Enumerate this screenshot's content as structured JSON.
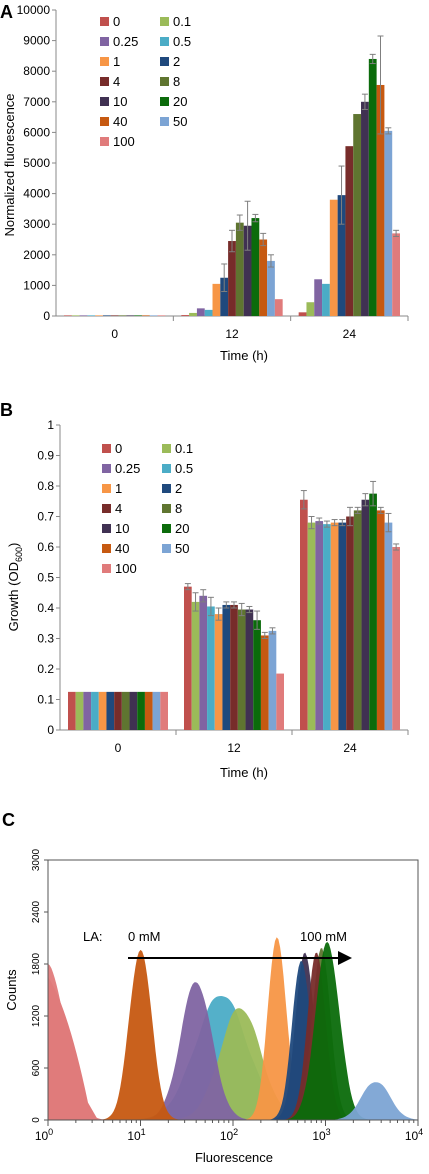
{
  "chart_data": [
    {
      "panel_label": "A",
      "type": "bar",
      "ylabel": "Normalized fluorescence",
      "xlabel": "Time (h)",
      "ylim": [
        0,
        10000
      ],
      "yticks": [
        "0",
        "1000",
        "2000",
        "3000",
        "4000",
        "5000",
        "6000",
        "7000",
        "8000",
        "9000",
        "10000"
      ],
      "categories": [
        "0",
        "12",
        "24"
      ],
      "legend_position": "top-left",
      "series": [
        {
          "name": "0",
          "color": "#c0504d",
          "values": [
            20,
            30,
            120
          ],
          "errors": [
            0,
            0,
            0
          ]
        },
        {
          "name": "0.1",
          "color": "#9bbb59",
          "values": [
            20,
            100,
            450
          ],
          "errors": [
            0,
            0,
            0
          ]
        },
        {
          "name": "0.25",
          "color": "#8064a2",
          "values": [
            20,
            250,
            1200
          ],
          "errors": [
            0,
            0,
            0
          ]
        },
        {
          "name": "0.5",
          "color": "#4bacc6",
          "values": [
            20,
            200,
            1050
          ],
          "errors": [
            0,
            0,
            0
          ]
        },
        {
          "name": "1",
          "color": "#f79646",
          "values": [
            20,
            1050,
            3800
          ],
          "errors": [
            0,
            0,
            0
          ]
        },
        {
          "name": "2",
          "color": "#1f497d",
          "values": [
            20,
            1250,
            3950
          ],
          "errors": [
            0,
            450,
            950
          ]
        },
        {
          "name": "4",
          "color": "#772c2a",
          "values": [
            20,
            2450,
            5550
          ],
          "errors": [
            0,
            350,
            0
          ]
        },
        {
          "name": "8",
          "color": "#5f7530",
          "values": [
            20,
            3050,
            6600
          ],
          "errors": [
            0,
            250,
            0
          ]
        },
        {
          "name": "10",
          "color": "#403152",
          "values": [
            20,
            2950,
            7000
          ],
          "errors": [
            0,
            800,
            250
          ]
        },
        {
          "name": "20",
          "color": "#0b6b0b",
          "values": [
            20,
            3200,
            8400
          ],
          "errors": [
            0,
            120,
            150
          ]
        },
        {
          "name": "40",
          "color": "#c65911",
          "values": [
            20,
            2500,
            7550
          ],
          "errors": [
            0,
            200,
            1600
          ]
        },
        {
          "name": "50",
          "color": "#7ca4d4",
          "values": [
            20,
            1800,
            6050
          ],
          "errors": [
            0,
            200,
            100
          ]
        },
        {
          "name": "100",
          "color": "#e07b7b",
          "values": [
            20,
            550,
            2700
          ],
          "errors": [
            0,
            0,
            100
          ]
        }
      ]
    },
    {
      "panel_label": "B",
      "type": "bar",
      "ylabel_main": "Growth (OD",
      "ylabel_sub": "600",
      "ylabel_end": ")",
      "xlabel": "Time (h)",
      "ylim": [
        0,
        1
      ],
      "yticks": [
        "0",
        "0.1",
        "0.2",
        "0.3",
        "0.4",
        "0.5",
        "0.6",
        "0.7",
        "0.8",
        "0.9",
        "1"
      ],
      "categories": [
        "0",
        "12",
        "24"
      ],
      "legend_position": "top-left",
      "series": [
        {
          "name": "0",
          "color": "#c0504d",
          "values": [
            0.125,
            0.47,
            0.755
          ],
          "errors": [
            0,
            0.01,
            0.03
          ]
        },
        {
          "name": "0.1",
          "color": "#9bbb59",
          "values": [
            0.125,
            0.42,
            0.68
          ],
          "errors": [
            0,
            0.03,
            0.02
          ]
        },
        {
          "name": "0.25",
          "color": "#8064a2",
          "values": [
            0.125,
            0.44,
            0.685
          ],
          "errors": [
            0,
            0.02,
            0.01
          ]
        },
        {
          "name": "0.5",
          "color": "#4bacc6",
          "values": [
            0.125,
            0.405,
            0.675
          ],
          "errors": [
            0,
            0.03,
            0.01
          ]
        },
        {
          "name": "1",
          "color": "#f79646",
          "values": [
            0.125,
            0.38,
            0.68
          ],
          "errors": [
            0,
            0.02,
            0.01
          ]
        },
        {
          "name": "2",
          "color": "#1f497d",
          "values": [
            0.125,
            0.41,
            0.68
          ],
          "errors": [
            0,
            0.01,
            0.01
          ]
        },
        {
          "name": "4",
          "color": "#772c2a",
          "values": [
            0.125,
            0.41,
            0.7
          ],
          "errors": [
            0,
            0.01,
            0.03
          ]
        },
        {
          "name": "8",
          "color": "#5f7530",
          "values": [
            0.125,
            0.395,
            0.72
          ],
          "errors": [
            0,
            0.02,
            0.01
          ]
        },
        {
          "name": "10",
          "color": "#403152",
          "values": [
            0.125,
            0.395,
            0.755
          ],
          "errors": [
            0,
            0.01,
            0.02
          ]
        },
        {
          "name": "20",
          "color": "#0b6b0b",
          "values": [
            0.125,
            0.36,
            0.775
          ],
          "errors": [
            0,
            0.03,
            0.04
          ]
        },
        {
          "name": "40",
          "color": "#c65911",
          "values": [
            0.125,
            0.31,
            0.72
          ],
          "errors": [
            0,
            0.01,
            0.01
          ]
        },
        {
          "name": "50",
          "color": "#7ca4d4",
          "values": [
            0.125,
            0.325,
            0.68
          ],
          "errors": [
            0,
            0.01,
            0.03
          ]
        },
        {
          "name": "100",
          "color": "#e07b7b",
          "values": [
            0.125,
            0.185,
            0.6
          ],
          "errors": [
            0,
            0,
            0.01
          ]
        }
      ],
      "extra_group24": [
        {
          "color": "#e07b7b",
          "value": 0.42,
          "error": 0.02
        },
        {
          "color": "#7ca4d4",
          "value": 0.395,
          "error": 0.02
        },
        {
          "color": "#e07b7b",
          "value": 0.33,
          "error": 0.01
        }
      ]
    },
    {
      "panel_label": "C",
      "type": "area",
      "ylabel": "Counts",
      "xlabel": "Fluorescence",
      "ylim": [
        0,
        3000
      ],
      "yticks": [
        "0",
        "600",
        "1200",
        "1800",
        "2400",
        "3000"
      ],
      "xscale": "log",
      "xlim": [
        1,
        10000
      ],
      "xtick_labels": [
        {
          "base": "10",
          "exp": "0"
        },
        {
          "base": "10",
          "exp": "1"
        },
        {
          "base": "10",
          "exp": "2"
        },
        {
          "base": "10",
          "exp": "3"
        },
        {
          "base": "10",
          "exp": "4"
        }
      ],
      "annotation_prefix": "LA:",
      "annotation_start": "0 mM",
      "annotation_end": "100 mM",
      "histograms": [
        {
          "color": "#4bacc6",
          "peak_x": 75,
          "peak": 1450,
          "width": 0.28
        },
        {
          "color": "#9bbb59",
          "peak_x": 120,
          "peak": 1300,
          "width": 0.22
        },
        {
          "color": "#8064a2",
          "peak_x": 40,
          "peak": 1600,
          "width": 0.17
        },
        {
          "color": "#c65911",
          "peak_x": 10,
          "peak": 1980,
          "width": 0.12
        },
        {
          "color": "#f79646",
          "peak_x": 300,
          "peak": 2120,
          "width": 0.1
        },
        {
          "color": "#403152",
          "peak_x": 600,
          "peak": 1950,
          "width": 0.1
        },
        {
          "color": "#1f497d",
          "peak_x": 550,
          "peak": 1850,
          "width": 0.1
        },
        {
          "color": "#5f7530",
          "peak_x": 900,
          "peak": 1980,
          "width": 0.1
        },
        {
          "color": "#772c2a",
          "peak_x": 800,
          "peak": 1920,
          "width": 0.1
        },
        {
          "color": "#0b6b0b",
          "peak_x": 1050,
          "peak": 2050,
          "width": 0.13
        },
        {
          "color": "#7ca4d4",
          "peak_x": 3500,
          "peak": 450,
          "width": 0.15
        },
        {
          "color": "#e07b7b",
          "peak_x": 1,
          "peak": 1800,
          "width": 0.18
        }
      ]
    }
  ]
}
